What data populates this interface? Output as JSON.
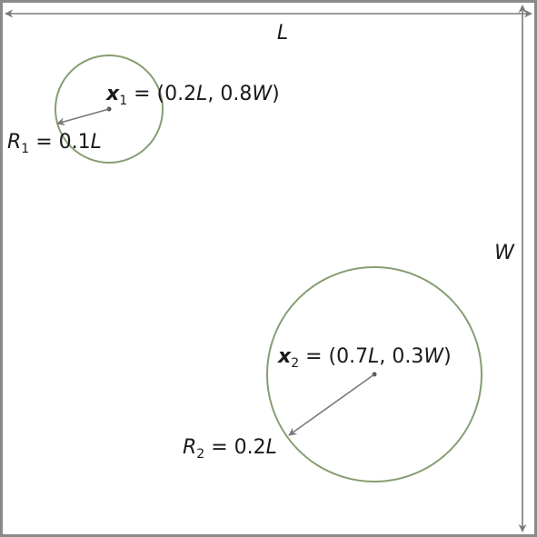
{
  "diagram": {
    "colors": {
      "frame": "#8a8a8a",
      "circle": "#869e72",
      "arrow": "#7a7a7a",
      "center": "#555555",
      "text": "#1a1a1a"
    },
    "dimensions": {
      "length_label": "L",
      "width_label": "W"
    },
    "circles": [
      {
        "name": "circle-1",
        "center_var": "x",
        "center_index": "1",
        "center_eq": " = (0.2",
        "center_L": "L",
        "center_mid": ", 0.8",
        "center_W": "W",
        "center_end": ")",
        "radius_var": "R",
        "radius_index": "1",
        "radius_eq": " = 0.1",
        "radius_L": "L"
      },
      {
        "name": "circle-2",
        "center_var": "x",
        "center_index": "2",
        "center_eq": " = (0.7",
        "center_L": "L",
        "center_mid": ", 0.3",
        "center_W": "W",
        "center_end": ")",
        "radius_var": "R",
        "radius_index": "2",
        "radius_eq": " = 0.2",
        "radius_L": "L"
      }
    ]
  }
}
